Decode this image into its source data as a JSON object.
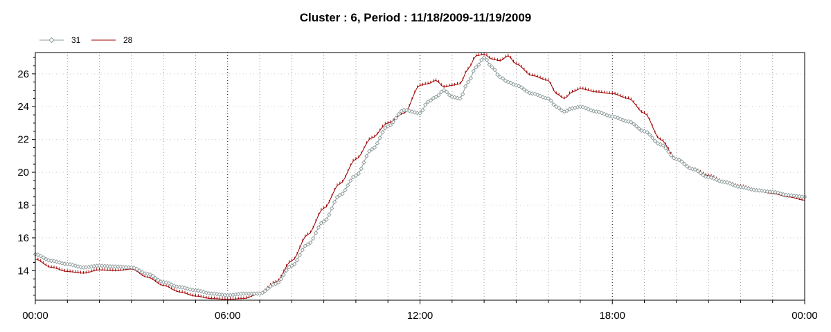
{
  "chart_data": {
    "type": "line",
    "title": "Cluster : 6, Period : 11/18/2009-11/19/2009",
    "xlabel": "",
    "ylabel": "",
    "x_hours": [
      0,
      0.5,
      1,
      1.5,
      2,
      2.5,
      3,
      3.5,
      4,
      4.5,
      5,
      5.5,
      6,
      6.5,
      7,
      7.5,
      8,
      8.5,
      9,
      9.5,
      10,
      10.5,
      11,
      11.5,
      12,
      12.25,
      12.5,
      12.75,
      13,
      13.25,
      13.5,
      13.75,
      14,
      14.25,
      14.5,
      14.75,
      15,
      15.5,
      16,
      16.25,
      16.5,
      16.75,
      17,
      17.5,
      18,
      18.5,
      19,
      19.5,
      20,
      20.5,
      21,
      21.5,
      22,
      22.5,
      23,
      23.5,
      24
    ],
    "xticks": [
      "00:00",
      "06:00",
      "12:00",
      "18:00",
      "00:00"
    ],
    "xtick_hours": [
      0,
      6,
      12,
      18,
      24
    ],
    "xlim_hours": [
      0,
      24
    ],
    "ylim": [
      12.2,
      27.3
    ],
    "yticks": [
      14,
      16,
      18,
      20,
      22,
      24,
      26
    ],
    "grid": true,
    "legend_position": "top-left",
    "series": [
      {
        "name": "31",
        "color": "#8c9a9a",
        "marker": "diamond",
        "values": [
          15.0,
          14.6,
          14.4,
          14.2,
          14.3,
          14.25,
          14.2,
          13.8,
          13.3,
          13.0,
          12.8,
          12.6,
          12.5,
          12.6,
          12.6,
          13.2,
          14.3,
          15.6,
          17.0,
          18.6,
          19.8,
          21.4,
          22.8,
          23.8,
          23.6,
          24.3,
          24.6,
          25.0,
          24.6,
          24.5,
          25.5,
          26.4,
          27.0,
          26.4,
          25.8,
          25.5,
          25.3,
          24.8,
          24.5,
          24.0,
          23.7,
          23.9,
          24.0,
          23.7,
          23.4,
          23.1,
          22.5,
          21.7,
          20.8,
          20.2,
          19.7,
          19.4,
          19.1,
          18.9,
          18.8,
          18.6,
          18.5
        ]
      },
      {
        "name": "28",
        "color": "#a00000",
        "marker": "tick",
        "values": [
          14.7,
          14.2,
          13.95,
          13.85,
          14.05,
          14.0,
          14.1,
          13.6,
          13.1,
          12.7,
          12.45,
          12.3,
          12.25,
          12.3,
          12.6,
          13.3,
          14.6,
          16.2,
          17.8,
          19.3,
          20.8,
          22.1,
          23.0,
          23.6,
          25.3,
          25.4,
          25.6,
          25.2,
          25.3,
          25.4,
          26.3,
          27.1,
          27.2,
          26.9,
          26.8,
          27.1,
          26.6,
          25.9,
          25.6,
          24.8,
          24.5,
          24.9,
          25.1,
          24.9,
          24.8,
          24.5,
          23.6,
          22.0,
          20.8,
          20.2,
          19.8,
          19.4,
          19.15,
          18.9,
          18.7,
          18.5,
          18.3
        ]
      }
    ]
  }
}
